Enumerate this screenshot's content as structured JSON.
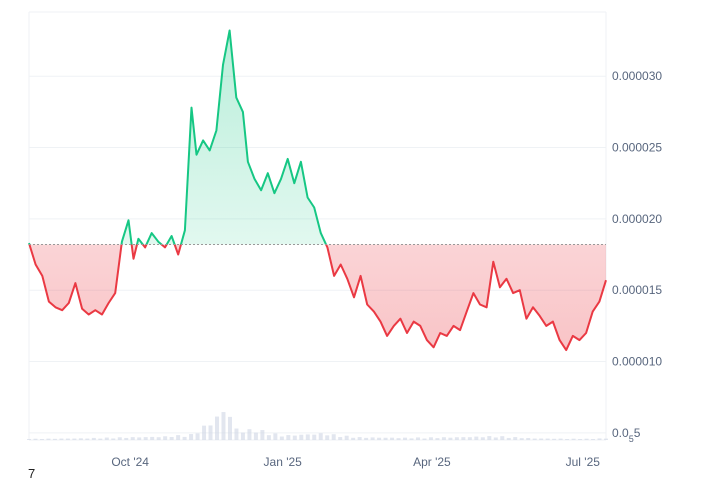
{
  "chart_data": {
    "type": "area",
    "title": "",
    "xlabel": "",
    "ylabel": "",
    "baseline": 1.82e-05,
    "ylim": [
      4.5e-06,
      3.45e-05
    ],
    "xlim": [
      "2024-08-01",
      "2025-07-15"
    ],
    "y_ticks": [
      {
        "value": 3e-05,
        "label": "0.000030"
      },
      {
        "value": 2.5e-05,
        "label": "0.000025"
      },
      {
        "value": 2e-05,
        "label": "0.000020"
      },
      {
        "value": 1.5e-05,
        "label": "0.000015"
      },
      {
        "value": 1e-05,
        "label": "0.000010"
      }
    ],
    "subscript_tick": {
      "value": 5e-06,
      "prefix": "0.0",
      "sub": "5",
      "suffix": "5"
    },
    "x_ticks": [
      {
        "date": "2024-10-01",
        "label": "Oct '24"
      },
      {
        "date": "2025-01-01",
        "label": "Jan '25"
      },
      {
        "date": "2025-04-01",
        "label": "Apr '25"
      },
      {
        "date": "2025-07-01",
        "label": "Jul '25"
      }
    ],
    "colors": {
      "above": "#16c784",
      "below": "#ea3943",
      "grid": "#eff2f5",
      "baseline": "#999999",
      "volume": "#cfd6e4"
    },
    "series": [
      {
        "x": [
          "2024-08-01",
          "2024-08-05",
          "2024-08-09",
          "2024-08-13",
          "2024-08-17",
          "2024-08-21",
          "2024-08-25",
          "2024-08-29",
          "2024-09-02",
          "2024-09-06",
          "2024-09-10",
          "2024-09-14",
          "2024-09-18",
          "2024-09-22",
          "2024-09-26",
          "2024-09-30",
          "2024-10-03",
          "2024-10-06",
          "2024-10-10",
          "2024-10-14",
          "2024-10-18",
          "2024-10-22",
          "2024-10-26",
          "2024-10-30",
          "2024-11-03",
          "2024-11-07",
          "2024-11-10",
          "2024-11-14",
          "2024-11-18",
          "2024-11-22",
          "2024-11-26",
          "2024-11-30",
          "2024-12-04",
          "2024-12-08",
          "2024-12-11",
          "2024-12-15",
          "2024-12-19",
          "2024-12-23",
          "2024-12-27",
          "2024-12-31",
          "2025-01-04",
          "2025-01-08",
          "2025-01-12",
          "2025-01-16",
          "2025-01-20",
          "2025-01-24",
          "2025-01-28",
          "2025-02-01",
          "2025-02-05",
          "2025-02-09",
          "2025-02-13",
          "2025-02-17",
          "2025-02-21",
          "2025-02-25",
          "2025-03-01",
          "2025-03-05",
          "2025-03-09",
          "2025-03-13",
          "2025-03-17",
          "2025-03-21",
          "2025-03-25",
          "2025-03-29",
          "2025-04-02",
          "2025-04-06",
          "2025-04-10",
          "2025-04-14",
          "2025-04-18",
          "2025-04-22",
          "2025-04-26",
          "2025-04-30",
          "2025-05-04",
          "2025-05-08",
          "2025-05-12",
          "2025-05-16",
          "2025-05-20",
          "2025-05-24",
          "2025-05-28",
          "2025-06-01",
          "2025-06-05",
          "2025-06-09",
          "2025-06-13",
          "2025-06-17",
          "2025-06-21",
          "2025-06-25",
          "2025-06-29",
          "2025-07-03",
          "2025-07-07",
          "2025-07-11",
          "2025-07-15"
        ],
        "y": [
          1.83e-05,
          1.68e-05,
          1.6e-05,
          1.42e-05,
          1.38e-05,
          1.36e-05,
          1.41e-05,
          1.55e-05,
          1.37e-05,
          1.33e-05,
          1.36e-05,
          1.33e-05,
          1.41e-05,
          1.48e-05,
          1.84e-05,
          1.99e-05,
          1.72e-05,
          1.86e-05,
          1.8e-05,
          1.9e-05,
          1.84e-05,
          1.8e-05,
          1.88e-05,
          1.75e-05,
          1.92e-05,
          2.78e-05,
          2.45e-05,
          2.55e-05,
          2.48e-05,
          2.62e-05,
          3.08e-05,
          3.32e-05,
          2.85e-05,
          2.75e-05,
          2.4e-05,
          2.28e-05,
          2.2e-05,
          2.32e-05,
          2.18e-05,
          2.28e-05,
          2.42e-05,
          2.25e-05,
          2.4e-05,
          2.15e-05,
          2.08e-05,
          1.9e-05,
          1.8e-05,
          1.6e-05,
          1.68e-05,
          1.58e-05,
          1.45e-05,
          1.6e-05,
          1.4e-05,
          1.35e-05,
          1.28e-05,
          1.18e-05,
          1.25e-05,
          1.3e-05,
          1.2e-05,
          1.28e-05,
          1.25e-05,
          1.15e-05,
          1.1e-05,
          1.2e-05,
          1.18e-05,
          1.25e-05,
          1.22e-05,
          1.35e-05,
          1.48e-05,
          1.4e-05,
          1.38e-05,
          1.7e-05,
          1.52e-05,
          1.58e-05,
          1.48e-05,
          1.5e-05,
          1.3e-05,
          1.38e-05,
          1.32e-05,
          1.25e-05,
          1.28e-05,
          1.15e-05,
          1.08e-05,
          1.18e-05,
          1.15e-05,
          1.2e-05,
          1.35e-05,
          1.42e-05,
          1.57e-05
        ]
      }
    ],
    "volume": {
      "x": [
        "2024-08-01",
        "2024-09-01",
        "2024-10-01",
        "2024-10-20",
        "2024-11-07",
        "2024-11-20",
        "2024-11-28",
        "2024-12-05",
        "2024-12-15",
        "2025-01-01",
        "2025-01-25",
        "2025-02-15",
        "2025-03-15",
        "2025-04-15",
        "2025-05-10",
        "2025-06-01",
        "2025-07-01",
        "2025-07-15"
      ],
      "values": [
        0.02,
        0.03,
        0.05,
        0.06,
        0.1,
        0.35,
        0.6,
        0.15,
        0.2,
        0.08,
        0.12,
        0.05,
        0.04,
        0.05,
        0.07,
        0.03,
        0.02,
        0.03
      ]
    }
  },
  "footer_mark": "7"
}
